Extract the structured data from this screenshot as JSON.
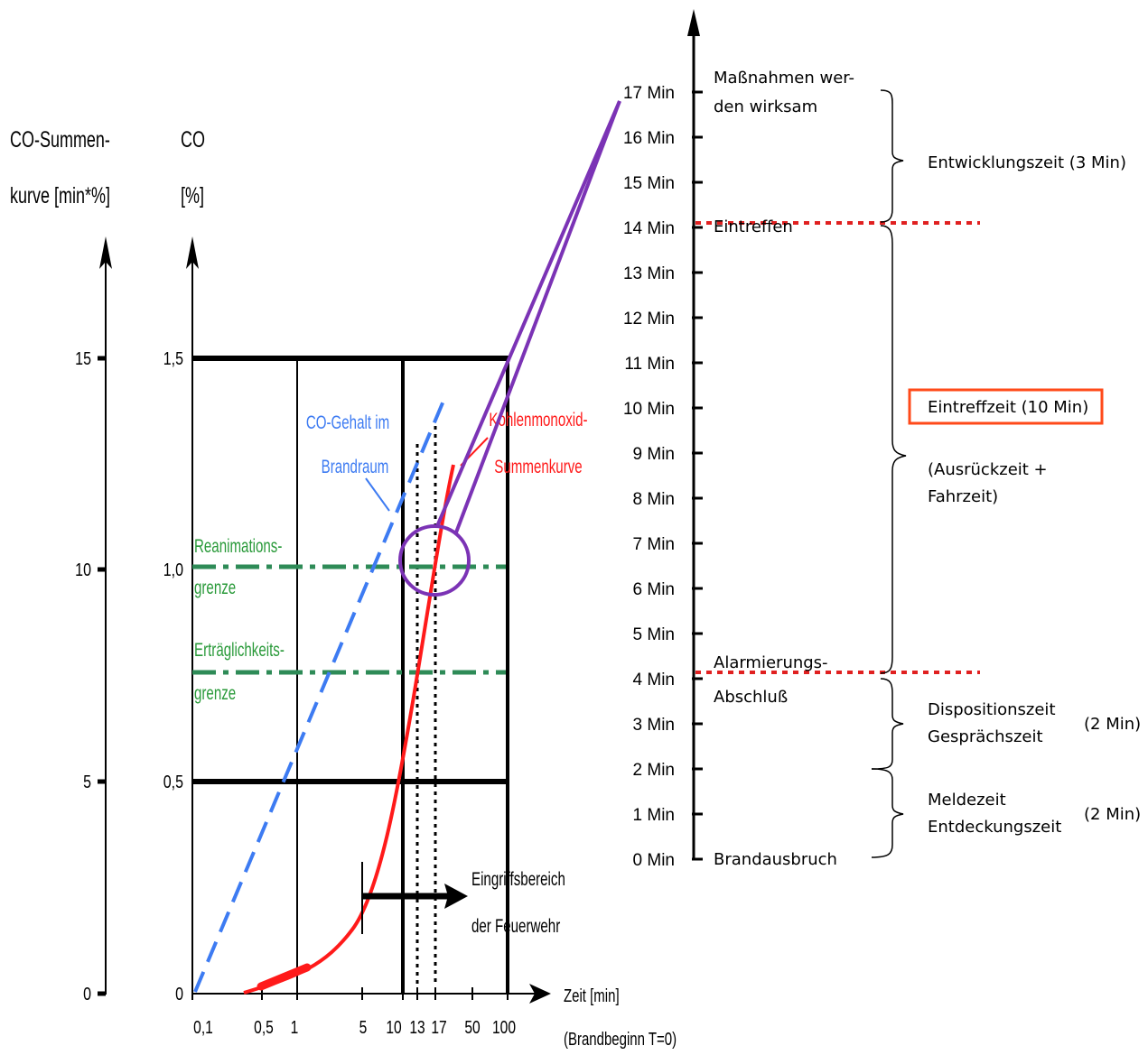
{
  "colors": {
    "black": "#000000",
    "co_blue": "#3d7bf2",
    "co_sum_red": "#ff1a1a",
    "limit_green": "#2e8b57",
    "label_green": "#2a9a3a",
    "purple": "#7b33b5",
    "dotted_red": "#e02020",
    "highlight_box": "#ff4a1a"
  },
  "left_chart": {
    "axis_sum_title_1": "CO-Summen-",
    "axis_sum_title_2": "kurve [min*%]",
    "axis_co_title_1": "CO",
    "axis_co_title_2": "[%]",
    "sum_ticks": [
      "15",
      "10",
      "5",
      "0"
    ],
    "co_ticks": [
      "1,5",
      "1,0",
      "0,5",
      "0"
    ],
    "x_ticks": [
      "0,1",
      "0,5",
      "1",
      "5",
      "10",
      "13",
      "17",
      "50",
      "100"
    ],
    "x_title_1": "Zeit [min]",
    "x_title_2": "(Brandbeginn T=0)",
    "co_label_1": "CO-Gehalt im",
    "co_label_2": "Brandraum",
    "sum_label_1": "Kohlenmonoxid-",
    "sum_label_2": "Summenkurve",
    "reanimation_1": "Reanimations-",
    "reanimation_2": "grenze",
    "tolerance_1": "Erträglichkeits-",
    "tolerance_2": "grenze",
    "intervention_1": "Eingriffsbereich",
    "intervention_2": "der Feuerwehr"
  },
  "timeline": {
    "ticks": [
      "17 Min",
      "16 Min",
      "15 Min",
      "14 Min",
      "13 Min",
      "12 Min",
      "11 Min",
      "10 Min",
      "9 Min",
      "8 Min",
      "7 Min",
      "6 Min",
      "5 Min",
      "4 Min",
      "3 Min",
      "2 Min",
      "1 Min",
      "0 Min"
    ],
    "event_top_1": "Maßnahmen wer-",
    "event_top_2": "den wirksam",
    "event_arrival": "Eintreffen",
    "event_alarm_1": "Alarmierungs-",
    "event_alarm_2": "Abschluß",
    "event_start": "Brandausbruch",
    "phase_development": "Entwicklungszeit (3 Min)",
    "phase_arrival_time": "Eintreffzeit (10 Min)",
    "phase_arrival_sub_1": "(Ausrückzeit +",
    "phase_arrival_sub_2": "Fahrzeit)",
    "phase_dispatch_1": "Dispositionszeit",
    "phase_dispatch_2": "Gesprächszeit",
    "phase_dispatch_dur": "(2 Min)",
    "phase_report_1": "Meldezeit",
    "phase_report_2": "Entdeckungszeit",
    "phase_report_dur": "(2 Min)"
  }
}
